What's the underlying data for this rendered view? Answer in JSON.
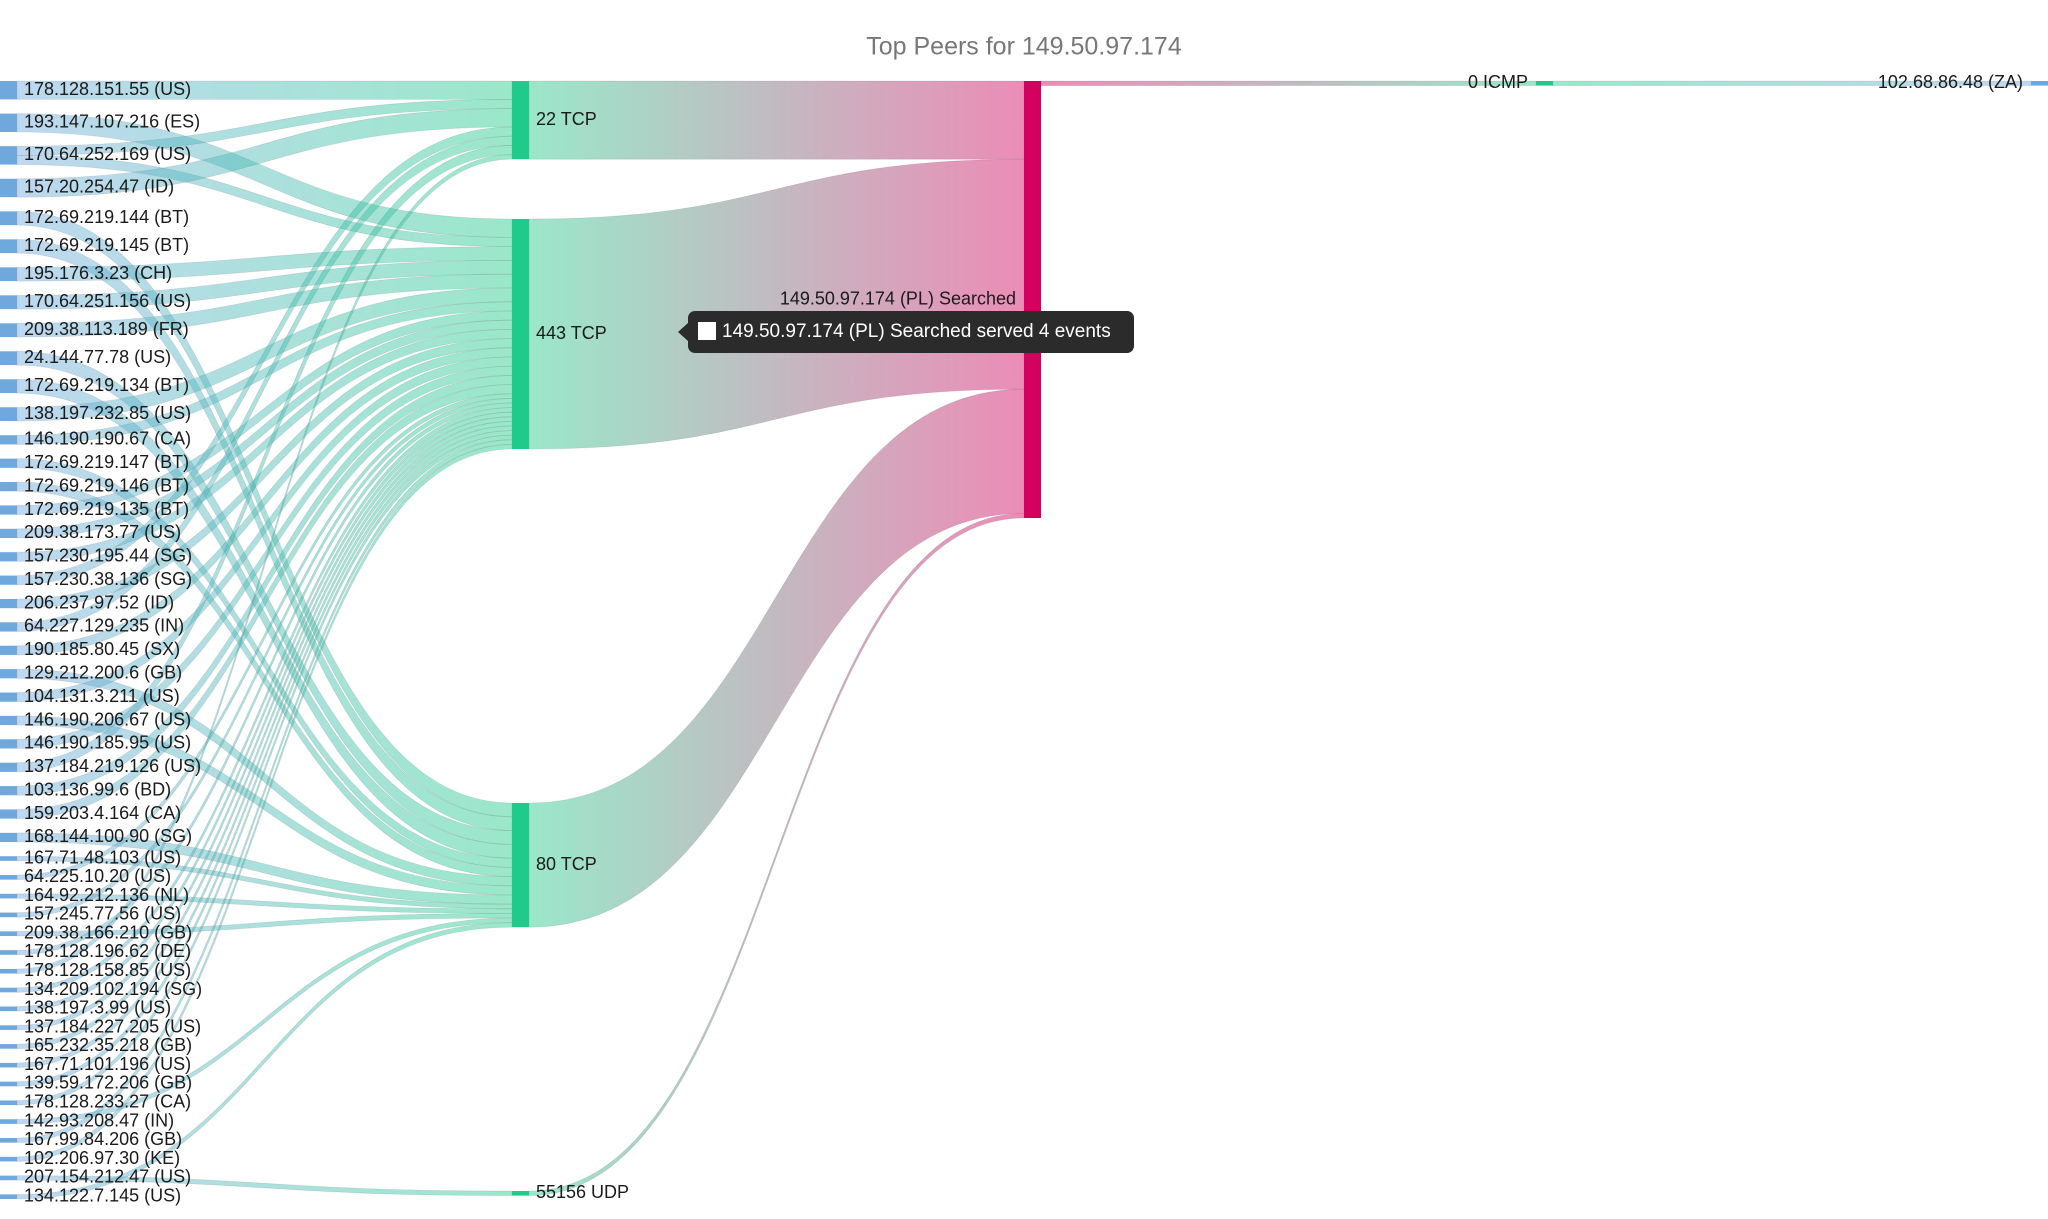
{
  "chart_data": {
    "type": "sankey",
    "title": "Top Peers for 149.50.97.174",
    "node_colors": [
      "#6fa8dc",
      "#1fcb8a",
      "#d4005f",
      "#1fcb8a",
      "#6fa8dc"
    ],
    "nodes": [
      {
        "name": "178.128.151.55 (US)"
      },
      {
        "name": "193.147.107.216 (ES)"
      },
      {
        "name": "170.64.252.169 (US)"
      },
      {
        "name": "157.20.254.47 (ID)"
      },
      {
        "name": "172.69.219.144 (BT)"
      },
      {
        "name": "172.69.219.145 (BT)"
      },
      {
        "name": "195.176.3.23 (CH)"
      },
      {
        "name": "170.64.251.156 (US)"
      },
      {
        "name": "209.38.113.189 (FR)"
      },
      {
        "name": "24.144.77.78 (US)"
      },
      {
        "name": "172.69.219.134 (BT)"
      },
      {
        "name": "138.197.232.85 (US)"
      },
      {
        "name": "146.190.190.67 (CA)"
      },
      {
        "name": "172.69.219.147 (BT)"
      },
      {
        "name": "172.69.219.146 (BT)"
      },
      {
        "name": "172.69.219.135 (BT)"
      },
      {
        "name": "209.38.173.77 (US)"
      },
      {
        "name": "157.230.195.44 (SG)"
      },
      {
        "name": "157.230.38.136 (SG)"
      },
      {
        "name": "206.237.97.52 (ID)"
      },
      {
        "name": "64.227.129.235 (IN)"
      },
      {
        "name": "190.185.80.45 (SX)"
      },
      {
        "name": "129.212.200.6 (GB)"
      },
      {
        "name": "104.131.3.211 (US)"
      },
      {
        "name": "146.190.206.67 (US)"
      },
      {
        "name": "146.190.185.95 (US)"
      },
      {
        "name": "137.184.219.126 (US)"
      },
      {
        "name": "103.136.99.6 (BD)"
      },
      {
        "name": "159.203.4.164 (CA)"
      },
      {
        "name": "168.144.100.90 (SG)"
      },
      {
        "name": "167.71.48.103 (US)"
      },
      {
        "name": "64.225.10.20 (US)"
      },
      {
        "name": "164.92.212.136 (NL)"
      },
      {
        "name": "157.245.77.56 (US)"
      },
      {
        "name": "209.38.166.210 (GB)"
      },
      {
        "name": "178.128.196.62 (DE)"
      },
      {
        "name": "178.128.158.85 (US)"
      },
      {
        "name": "134.209.102.194 (SG)"
      },
      {
        "name": "138.197.3.99 (US)"
      },
      {
        "name": "137.184.227.205 (US)"
      },
      {
        "name": "165.232.35.218 (GB)"
      },
      {
        "name": "167.71.101.196 (US)"
      },
      {
        "name": "139.59.172.206 (GB)"
      },
      {
        "name": "178.128.233.27 (CA)"
      },
      {
        "name": "142.93.208.47 (IN)"
      },
      {
        "name": "167.99.84.206 (GB)"
      },
      {
        "name": "102.206.97.30 (KE)"
      },
      {
        "name": "207.154.212.47 (US)"
      },
      {
        "name": "134.122.7.145 (US)"
      },
      {
        "name": "22 TCP"
      },
      {
        "name": "443 TCP"
      },
      {
        "name": "80 TCP"
      },
      {
        "name": "55156 UDP"
      },
      {
        "name": "149.50.97.174 (PL) Searched"
      },
      {
        "name": "0 ICMP"
      },
      {
        "name": "102.68.86.48 (ZA)"
      }
    ],
    "links": [
      {
        "source": 0,
        "target": 49,
        "value": 4
      },
      {
        "source": 1,
        "target": 50,
        "value": 4
      },
      {
        "source": 2,
        "target": 49,
        "value": 2
      },
      {
        "source": 2,
        "target": 50,
        "value": 2
      },
      {
        "source": 3,
        "target": 49,
        "value": 4
      },
      {
        "source": 4,
        "target": 51,
        "value": 3
      },
      {
        "source": 5,
        "target": 51,
        "value": 3
      },
      {
        "source": 6,
        "target": 50,
        "value": 3
      },
      {
        "source": 7,
        "target": 50,
        "value": 3
      },
      {
        "source": 8,
        "target": 50,
        "value": 3
      },
      {
        "source": 9,
        "target": 51,
        "value": 3
      },
      {
        "source": 10,
        "target": 51,
        "value": 3
      },
      {
        "source": 11,
        "target": 50,
        "value": 3
      },
      {
        "source": 12,
        "target": 50,
        "value": 2
      },
      {
        "source": 13,
        "target": 51,
        "value": 2
      },
      {
        "source": 14,
        "target": 51,
        "value": 2
      },
      {
        "source": 15,
        "target": 50,
        "value": 2
      },
      {
        "source": 16,
        "target": 50,
        "value": 2
      },
      {
        "source": 17,
        "target": 50,
        "value": 2
      },
      {
        "source": 18,
        "target": 49,
        "value": 2
      },
      {
        "source": 19,
        "target": 50,
        "value": 2
      },
      {
        "source": 20,
        "target": 49,
        "value": 2
      },
      {
        "source": 21,
        "target": 50,
        "value": 2
      },
      {
        "source": 22,
        "target": 51,
        "value": 2
      },
      {
        "source": 23,
        "target": 50,
        "value": 2
      },
      {
        "source": 24,
        "target": 51,
        "value": 2
      },
      {
        "source": 25,
        "target": 50,
        "value": 2
      },
      {
        "source": 26,
        "target": 49,
        "value": 2
      },
      {
        "source": 27,
        "target": 50,
        "value": 2
      },
      {
        "source": 28,
        "target": 50,
        "value": 2
      },
      {
        "source": 29,
        "target": 51,
        "value": 2
      },
      {
        "source": 30,
        "target": 51,
        "value": 1
      },
      {
        "source": 31,
        "target": 50,
        "value": 1
      },
      {
        "source": 32,
        "target": 51,
        "value": 1
      },
      {
        "source": 33,
        "target": 50,
        "value": 1
      },
      {
        "source": 34,
        "target": 51,
        "value": 1
      },
      {
        "source": 35,
        "target": 50,
        "value": 1
      },
      {
        "source": 36,
        "target": 49,
        "value": 1
      },
      {
        "source": 37,
        "target": 50,
        "value": 1
      },
      {
        "source": 38,
        "target": 50,
        "value": 1
      },
      {
        "source": 39,
        "target": 50,
        "value": 1
      },
      {
        "source": 40,
        "target": 50,
        "value": 1
      },
      {
        "source": 41,
        "target": 50,
        "value": 1
      },
      {
        "source": 42,
        "target": 50,
        "value": 1
      },
      {
        "source": 43,
        "target": 50,
        "value": 1
      },
      {
        "source": 44,
        "target": 51,
        "value": 1
      },
      {
        "source": 45,
        "target": 50,
        "value": 1
      },
      {
        "source": 46,
        "target": 50,
        "value": 1
      },
      {
        "source": 47,
        "target": 52,
        "value": 1
      },
      {
        "source": 48,
        "target": 51,
        "value": 1
      },
      {
        "source": 49,
        "target": 53,
        "value": 17
      },
      {
        "source": 50,
        "target": 53,
        "value": 50
      },
      {
        "source": 51,
        "target": 53,
        "value": 27
      },
      {
        "source": 52,
        "target": 53,
        "value": 1
      },
      {
        "source": 53,
        "target": 54,
        "value": 1
      },
      {
        "source": 54,
        "target": 55,
        "value": 1
      }
    ],
    "tooltip": "149.50.97.174 (PL) Searched served 4 events"
  }
}
